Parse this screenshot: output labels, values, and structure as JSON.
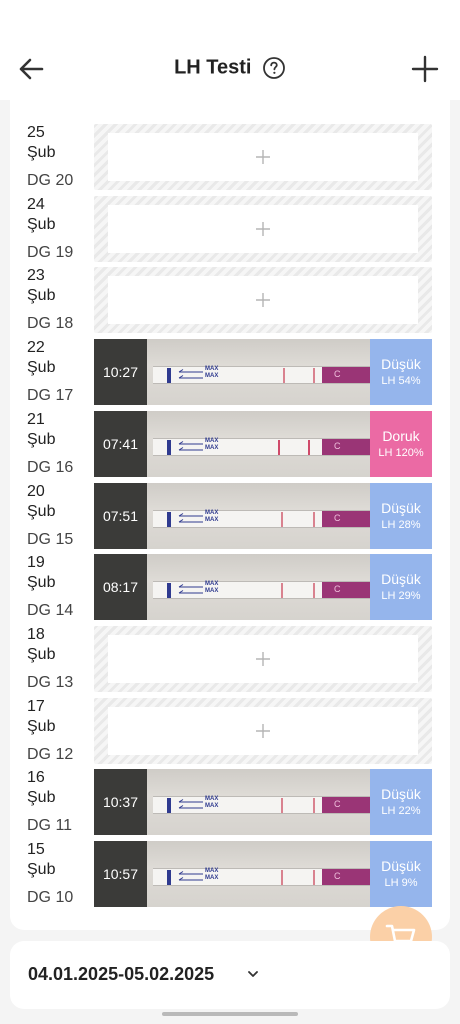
{
  "header": {
    "title": "LH Testi"
  },
  "icons": {
    "back": "arrow-left-icon",
    "help": "question-circle-icon",
    "add": "plus-icon",
    "cart": "cart-icon",
    "chevron": "chevron-down-icon"
  },
  "colors": {
    "low": "#95b5ec",
    "peak": "#eb6aa4",
    "fab": "#fbd0a7"
  },
  "rows": [
    {
      "day": "25",
      "month": "Şub",
      "dg": "DG 20",
      "has_test": false
    },
    {
      "day": "24",
      "month": "Şub",
      "dg": "DG 19",
      "has_test": false
    },
    {
      "day": "23",
      "month": "Şub",
      "dg": "DG 18",
      "has_test": false
    },
    {
      "day": "22",
      "month": "Şub",
      "dg": "DG 17",
      "has_test": true,
      "time": "10:27",
      "level": "Düşük",
      "lh": "LH 54%"
    },
    {
      "day": "21",
      "month": "Şub",
      "dg": "DG 16",
      "has_test": true,
      "time": "07:41",
      "level": "Doruk",
      "lh": "LH 120%"
    },
    {
      "day": "20",
      "month": "Şub",
      "dg": "DG 15",
      "has_test": true,
      "time": "07:51",
      "level": "Düşük",
      "lh": "LH 28%"
    },
    {
      "day": "19",
      "month": "Şub",
      "dg": "DG 14",
      "has_test": true,
      "time": "08:17",
      "level": "Düşük",
      "lh": "LH 29%"
    },
    {
      "day": "18",
      "month": "Şub",
      "dg": "DG 13",
      "has_test": false
    },
    {
      "day": "17",
      "month": "Şub",
      "dg": "DG 12",
      "has_test": false
    },
    {
      "day": "16",
      "month": "Şub",
      "dg": "DG 11",
      "has_test": true,
      "time": "10:37",
      "level": "Düşük",
      "lh": "LH 22%"
    },
    {
      "day": "15",
      "month": "Şub",
      "dg": "DG 10",
      "has_test": true,
      "time": "10:57",
      "level": "Düşük",
      "lh": "LH 9%"
    }
  ],
  "strip": {
    "max_label": "MAX",
    "c_label": "C"
  },
  "date_range": {
    "label": "04.01.2025-05.02.2025"
  }
}
